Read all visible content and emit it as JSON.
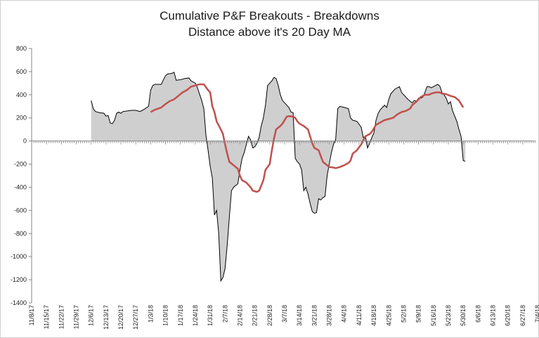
{
  "chart_data": {
    "type": "area",
    "title": "Cumulative P&F Breakouts - Breakdowns",
    "subtitle": "Distance above it's 20 Day MA",
    "xlabel": "",
    "ylabel": "",
    "ylim": [
      -1400,
      800
    ],
    "yticks": [
      -1400,
      -1200,
      -1000,
      -800,
      -600,
      -400,
      -200,
      0,
      200,
      400,
      600,
      800
    ],
    "xlim": [
      0,
      237
    ],
    "grid": false,
    "legend": "none",
    "x_tick_labels": [
      "11/8/17",
      "11/15/17",
      "11/22/17",
      "11/29/17",
      "12/6/17",
      "12/13/17",
      "12/20/17",
      "12/27/17",
      "1/3/18",
      "1/10/18",
      "1/17/18",
      "1/24/18",
      "1/31/18",
      "2/7/18",
      "2/14/18",
      "2/21/18",
      "2/28/18",
      "3/7/18",
      "3/14/18",
      "3/21/18",
      "3/28/18",
      "4/4/18",
      "4/11/18",
      "4/18/18",
      "4/25/18",
      "5/2/18",
      "5/9/18",
      "5/16/18",
      "5/23/18",
      "5/30/18",
      "6/6/18",
      "6/13/18",
      "6/20/18",
      "6/27/18",
      "7/4/18"
    ],
    "x_tick_days": [
      0,
      7,
      14,
      21,
      28,
      35,
      42,
      49,
      56,
      63,
      70,
      77,
      84,
      91,
      98,
      105,
      112,
      119,
      126,
      133,
      140,
      147,
      154,
      161,
      168,
      175,
      182,
      189,
      196,
      203,
      210,
      217,
      224,
      231,
      238
    ],
    "series": [
      {
        "name": "Cumulative P&F Breakouts - Breakdowns",
        "style": "area",
        "color": "#000000",
        "fill": "#cfcfcf",
        "points": [
          [
            28,
            350
          ],
          [
            29,
            280
          ],
          [
            30,
            255
          ],
          [
            32,
            245
          ],
          [
            34,
            240
          ],
          [
            35,
            215
          ],
          [
            36,
            220
          ],
          [
            37,
            155
          ],
          [
            38,
            150
          ],
          [
            39,
            180
          ],
          [
            40,
            240
          ],
          [
            41,
            250
          ],
          [
            42,
            240
          ],
          [
            43,
            255
          ],
          [
            45,
            260
          ],
          [
            47,
            265
          ],
          [
            49,
            265
          ],
          [
            51,
            255
          ],
          [
            53,
            275
          ],
          [
            55,
            300
          ],
          [
            56,
            440
          ],
          [
            57,
            480
          ],
          [
            58,
            490
          ],
          [
            61,
            490
          ],
          [
            62,
            530
          ],
          [
            63,
            565
          ],
          [
            64,
            580
          ],
          [
            66,
            585
          ],
          [
            67,
            595
          ],
          [
            68,
            525
          ],
          [
            70,
            530
          ],
          [
            72,
            540
          ],
          [
            74,
            545
          ],
          [
            75,
            520
          ],
          [
            77,
            500
          ],
          [
            78,
            460
          ],
          [
            80,
            350
          ],
          [
            81,
            280
          ],
          [
            82,
            50
          ],
          [
            83,
            -80
          ],
          [
            84,
            -220
          ],
          [
            85,
            -320
          ],
          [
            86,
            -640
          ],
          [
            87,
            -600
          ],
          [
            88,
            -800
          ],
          [
            89,
            -1210
          ],
          [
            90,
            -1180
          ],
          [
            91,
            -1100
          ],
          [
            92,
            -900
          ],
          [
            93,
            -660
          ],
          [
            94,
            -430
          ],
          [
            95,
            -400
          ],
          [
            97,
            -370
          ],
          [
            98,
            -250
          ],
          [
            99,
            -150
          ],
          [
            100,
            -100
          ],
          [
            101,
            -30
          ],
          [
            102,
            40
          ],
          [
            103,
            10
          ],
          [
            104,
            -60
          ],
          [
            105,
            -50
          ],
          [
            106,
            -20
          ],
          [
            107,
            30
          ],
          [
            108,
            130
          ],
          [
            109,
            200
          ],
          [
            110,
            310
          ],
          [
            111,
            480
          ],
          [
            113,
            520
          ],
          [
            114,
            550
          ],
          [
            115,
            540
          ],
          [
            116,
            480
          ],
          [
            117,
            400
          ],
          [
            118,
            350
          ],
          [
            121,
            290
          ],
          [
            122,
            250
          ],
          [
            123,
            245
          ],
          [
            124,
            -150
          ],
          [
            125,
            -180
          ],
          [
            126,
            -200
          ],
          [
            127,
            -250
          ],
          [
            128,
            -430
          ],
          [
            129,
            -400
          ],
          [
            130,
            -460
          ],
          [
            131,
            -540
          ],
          [
            132,
            -610
          ],
          [
            133,
            -625
          ],
          [
            134,
            -620
          ],
          [
            135,
            -500
          ],
          [
            136,
            -510
          ],
          [
            137,
            -490
          ],
          [
            138,
            -480
          ],
          [
            139,
            -300
          ],
          [
            140,
            -200
          ],
          [
            141,
            -100
          ],
          [
            142,
            -30
          ],
          [
            143,
            10
          ],
          [
            144,
            280
          ],
          [
            145,
            300
          ],
          [
            147,
            290
          ],
          [
            149,
            280
          ],
          [
            150,
            200
          ],
          [
            151,
            180
          ],
          [
            153,
            170
          ],
          [
            155,
            120
          ],
          [
            156,
            30
          ],
          [
            157,
            40
          ],
          [
            158,
            -60
          ],
          [
            159,
            -20
          ],
          [
            160,
            30
          ],
          [
            161,
            70
          ],
          [
            162,
            180
          ],
          [
            163,
            240
          ],
          [
            164,
            270
          ],
          [
            166,
            310
          ],
          [
            167,
            290
          ],
          [
            168,
            360
          ],
          [
            169,
            410
          ],
          [
            171,
            450
          ],
          [
            173,
            470
          ],
          [
            174,
            420
          ],
          [
            175,
            400
          ],
          [
            177,
            360
          ],
          [
            179,
            330
          ],
          [
            180,
            350
          ],
          [
            181,
            345
          ],
          [
            182,
            370
          ],
          [
            183,
            370
          ],
          [
            184,
            380
          ],
          [
            185,
            420
          ],
          [
            186,
            470
          ],
          [
            187,
            470
          ],
          [
            188,
            460
          ],
          [
            189,
            470
          ],
          [
            191,
            490
          ],
          [
            192,
            475
          ],
          [
            193,
            420
          ],
          [
            194,
            400
          ],
          [
            195,
            370
          ],
          [
            196,
            320
          ],
          [
            197,
            340
          ],
          [
            198,
            260
          ],
          [
            200,
            170
          ],
          [
            201,
            100
          ],
          [
            202,
            40
          ],
          [
            203,
            -170
          ],
          [
            204,
            -175
          ]
        ]
      },
      {
        "name": "20 Day MA",
        "style": "line",
        "color": "#c0504d",
        "points": [
          [
            56,
            250
          ],
          [
            58,
            270
          ],
          [
            61,
            290
          ],
          [
            63,
            320
          ],
          [
            65,
            345
          ],
          [
            67,
            360
          ],
          [
            69,
            390
          ],
          [
            71,
            420
          ],
          [
            73,
            440
          ],
          [
            75,
            470
          ],
          [
            77,
            480
          ],
          [
            79,
            490
          ],
          [
            81,
            490
          ],
          [
            83,
            440
          ],
          [
            84,
            420
          ],
          [
            85,
            300
          ],
          [
            86,
            250
          ],
          [
            87,
            170
          ],
          [
            89,
            100
          ],
          [
            90,
            60
          ],
          [
            91,
            -30
          ],
          [
            92,
            -110
          ],
          [
            93,
            -180
          ],
          [
            95,
            -210
          ],
          [
            97,
            -240
          ],
          [
            98,
            -300
          ],
          [
            99,
            -340
          ],
          [
            101,
            -360
          ],
          [
            103,
            -400
          ],
          [
            104,
            -430
          ],
          [
            106,
            -440
          ],
          [
            107,
            -430
          ],
          [
            109,
            -340
          ],
          [
            110,
            -250
          ],
          [
            112,
            -200
          ],
          [
            113,
            -80
          ],
          [
            114,
            20
          ],
          [
            115,
            100
          ],
          [
            117,
            130
          ],
          [
            118,
            150
          ],
          [
            120,
            210
          ],
          [
            121,
            215
          ],
          [
            123,
            210
          ],
          [
            124,
            200
          ],
          [
            125,
            170
          ],
          [
            126,
            150
          ],
          [
            128,
            130
          ],
          [
            130,
            100
          ],
          [
            131,
            40
          ],
          [
            132,
            -20
          ],
          [
            133,
            -60
          ],
          [
            135,
            -80
          ],
          [
            136,
            -130
          ],
          [
            137,
            -180
          ],
          [
            139,
            -210
          ],
          [
            140,
            -225
          ],
          [
            142,
            -230
          ],
          [
            143,
            -235
          ],
          [
            145,
            -225
          ],
          [
            147,
            -210
          ],
          [
            149,
            -190
          ],
          [
            150,
            -170
          ],
          [
            151,
            -110
          ],
          [
            153,
            -80
          ],
          [
            155,
            -30
          ],
          [
            157,
            40
          ],
          [
            159,
            60
          ],
          [
            160,
            80
          ],
          [
            162,
            140
          ],
          [
            164,
            160
          ],
          [
            166,
            180
          ],
          [
            168,
            190
          ],
          [
            170,
            200
          ],
          [
            172,
            230
          ],
          [
            174,
            250
          ],
          [
            176,
            260
          ],
          [
            178,
            280
          ],
          [
            179,
            310
          ],
          [
            181,
            340
          ],
          [
            183,
            380
          ],
          [
            185,
            400
          ],
          [
            187,
            400
          ],
          [
            188,
            410
          ],
          [
            190,
            420
          ],
          [
            192,
            420
          ],
          [
            193,
            410
          ],
          [
            195,
            405
          ],
          [
            197,
            390
          ],
          [
            199,
            380
          ],
          [
            201,
            350
          ],
          [
            203,
            290
          ]
        ]
      }
    ]
  }
}
